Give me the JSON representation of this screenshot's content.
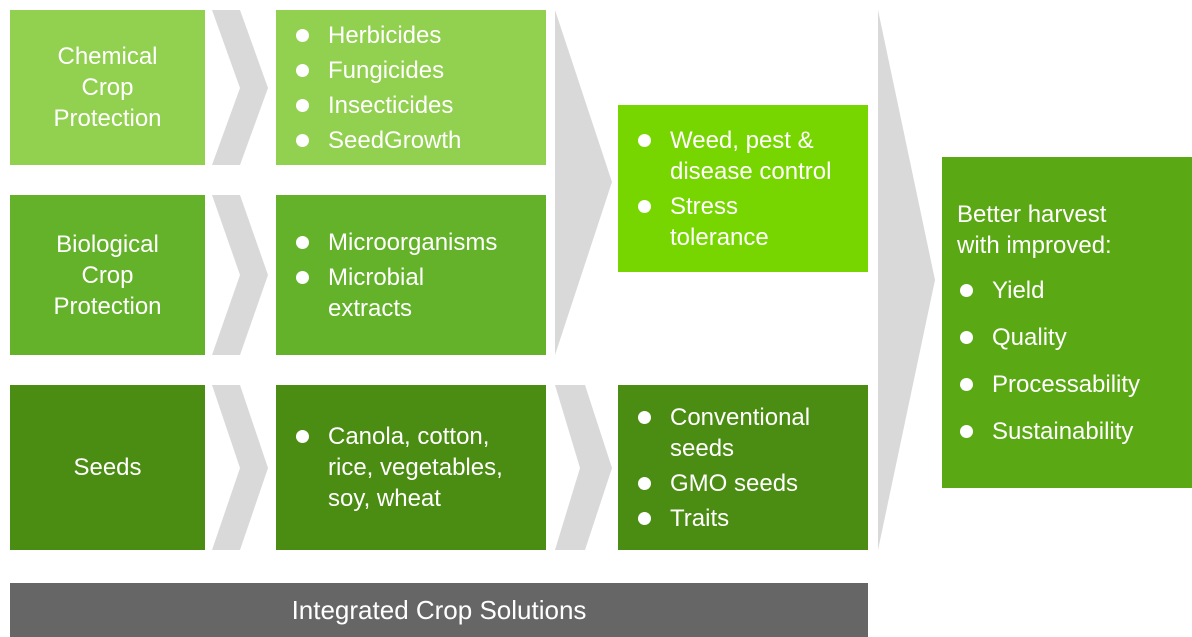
{
  "rows": [
    {
      "label": [
        "Chemical",
        "Crop",
        "Protection"
      ],
      "items": [
        [
          "Herbicides"
        ],
        [
          "Fungicides"
        ],
        [
          "Insecticides"
        ],
        [
          "SeedGrowth"
        ]
      ]
    },
    {
      "label": [
        "Biological",
        "Crop",
        "Protection"
      ],
      "items": [
        [
          "Microorganisms"
        ],
        [
          "Microbial",
          "extracts"
        ]
      ]
    },
    {
      "label": [
        "Seeds"
      ],
      "items": [
        [
          "Canola, cotton,",
          "rice, vegetables,",
          "soy, wheat"
        ]
      ]
    }
  ],
  "outcomes": [
    {
      "items": [
        [
          "Weed, pest &",
          "disease control"
        ],
        [
          "Stress",
          "tolerance"
        ]
      ]
    },
    {
      "items": [
        [
          "Conventional",
          "seeds"
        ],
        [
          "GMO seeds"
        ],
        [
          "Traits"
        ]
      ]
    }
  ],
  "result": {
    "heading": [
      "Better harvest",
      "with improved:"
    ],
    "items": [
      "Yield",
      "Quality",
      "Processability",
      "Sustainability"
    ]
  },
  "footer": "Integrated Crop Solutions"
}
